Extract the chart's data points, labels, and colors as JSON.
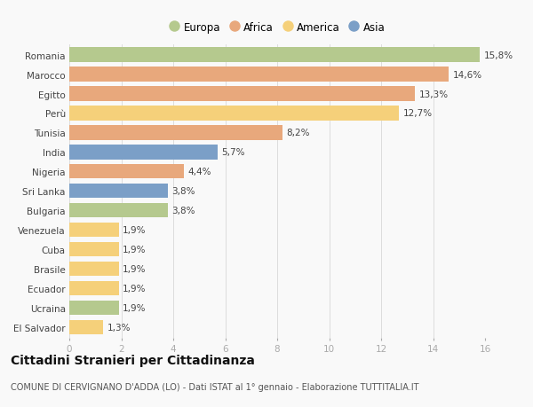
{
  "categories": [
    "Romania",
    "Marocco",
    "Egitto",
    "Perù",
    "Tunisia",
    "India",
    "Nigeria",
    "Sri Lanka",
    "Bulgaria",
    "Venezuela",
    "Cuba",
    "Brasile",
    "Ecuador",
    "Ucraina",
    "El Salvador"
  ],
  "values": [
    15.8,
    14.6,
    13.3,
    12.7,
    8.2,
    5.7,
    4.4,
    3.8,
    3.8,
    1.9,
    1.9,
    1.9,
    1.9,
    1.9,
    1.3
  ],
  "continents": [
    "Europa",
    "Africa",
    "Africa",
    "America",
    "Africa",
    "Asia",
    "Africa",
    "Asia",
    "Europa",
    "America",
    "America",
    "America",
    "America",
    "Europa",
    "America"
  ],
  "continent_colors": {
    "Europa": "#b5c98e",
    "Africa": "#e8a87c",
    "America": "#f5d07a",
    "Asia": "#7b9fc7"
  },
  "legend_order": [
    "Europa",
    "Africa",
    "America",
    "Asia"
  ],
  "title": "Cittadini Stranieri per Cittadinanza",
  "subtitle": "COMUNE DI CERVIGNANO D'ADDA (LO) - Dati ISTAT al 1° gennaio - Elaborazione TUTTITALIA.IT",
  "xlim": [
    0,
    16
  ],
  "xticks": [
    0,
    2,
    4,
    6,
    8,
    10,
    12,
    14,
    16
  ],
  "background_color": "#f9f9f9",
  "bar_height": 0.75,
  "label_fontsize": 7.5,
  "tick_fontsize": 7.5,
  "title_fontsize": 10,
  "subtitle_fontsize": 7
}
